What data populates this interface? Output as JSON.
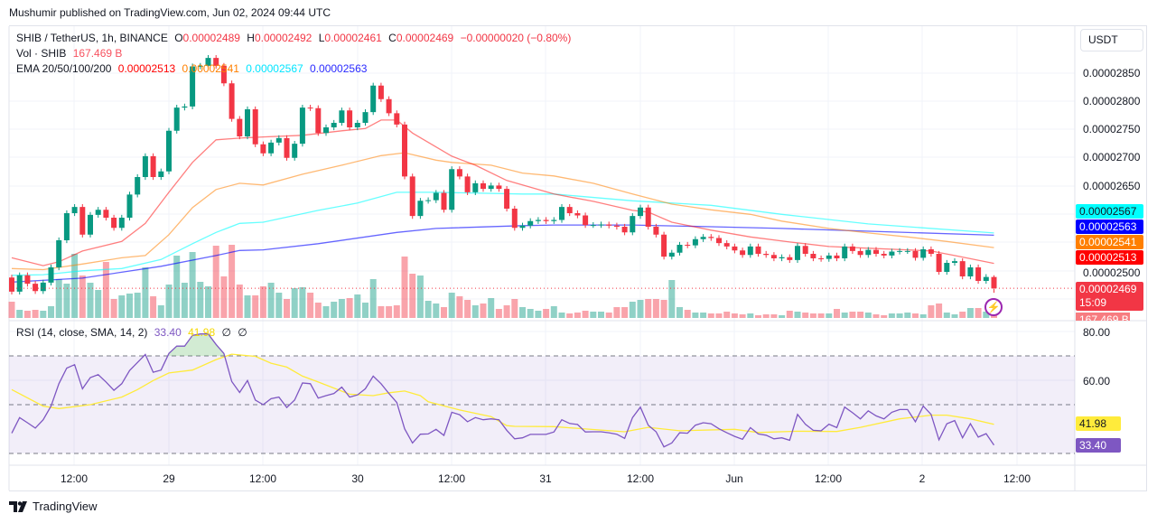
{
  "header": {
    "published": "Mushumir published on TradingView.com, Jun 02, 2024 09:44 UTC"
  },
  "legend": {
    "symbol": "SHIB / TetherUS, 1h, BINANCE",
    "o_label": "O",
    "o": "0.00002489",
    "h_label": "H",
    "h": "0.00002492",
    "l_label": "L",
    "l": "0.00002461",
    "c_label": "C",
    "c": "0.00002469",
    "change": "−0.00000020 (−0.80%)",
    "vol_label": "Vol · SHIB",
    "vol": "167.469 B",
    "ema_label": "EMA 20/50/100/200",
    "ema20": "0.00002513",
    "ema50": "0.00002541",
    "ema100": "0.00002567",
    "ema200": "0.00002563",
    "rsi_label": "RSI (14, close, SMA, 14, 2)",
    "rsi": "33.40",
    "rsi_ma": "41.98",
    "na1": "∅",
    "na2": "∅"
  },
  "currency_button": "USDT",
  "price_axis": {
    "ticks": [
      "0.00002850",
      "0.00002800",
      "0.00002750",
      "0.00002700",
      "0.00002650",
      "0.00002500"
    ],
    "labels": {
      "ema100": "0.00002567",
      "ema200": "0.00002563",
      "ema50": "0.00002541",
      "ema20": "0.00002513",
      "last": "0.00002469",
      "countdown": "15:09",
      "volume": "167.469 B"
    }
  },
  "rsi_axis": {
    "ticks": [
      "80.00",
      "60.00"
    ],
    "labels": {
      "ma": "41.98",
      "rsi": "33.40"
    }
  },
  "time_axis": [
    "12:00",
    "29",
    "12:00",
    "30",
    "12:00",
    "31",
    "12:00",
    "Jun",
    "12:00",
    "2",
    "12:00"
  ],
  "footer": {
    "logo_text": "TradingView"
  },
  "colors": {
    "up": "#089981",
    "down": "#f23645",
    "ema20": "#ff0000",
    "ema50": "#ff7f00",
    "ema100": "#00ffff",
    "ema200": "#0000ff",
    "rsi": "#7e57c2",
    "rsi_ma": "#ffeb3b"
  },
  "chart_data": {
    "type": "candlestick",
    "symbol": "SHIB/USDT",
    "interval": "1h",
    "price_unit": "1e-8 USDT",
    "first_open": 2488,
    "closes": [
      2463,
      2492,
      2477,
      2464,
      2479,
      2506,
      2554,
      2602,
      2613,
      2564,
      2599,
      2608,
      2594,
      2576,
      2594,
      2635,
      2666,
      2703,
      2666,
      2676,
      2748,
      2789,
      2791,
      2862,
      2863,
      2877,
      2863,
      2832,
      2769,
      2738,
      2786,
      2724,
      2708,
      2727,
      2735,
      2700,
      2725,
      2789,
      2788,
      2744,
      2754,
      2762,
      2784,
      2754,
      2762,
      2781,
      2828,
      2804,
      2779,
      2759,
      2667,
      2597,
      2624,
      2625,
      2638,
      2608,
      2680,
      2667,
      2639,
      2655,
      2645,
      2651,
      2645,
      2610,
      2576,
      2580,
      2588,
      2590,
      2588,
      2590,
      2613,
      2602,
      2598,
      2581,
      2581,
      2582,
      2580,
      2578,
      2568,
      2597,
      2612,
      2578,
      2564,
      2525,
      2532,
      2546,
      2545,
      2556,
      2560,
      2558,
      2549,
      2543,
      2536,
      2528,
      2543,
      2530,
      2528,
      2522,
      2524,
      2519,
      2544,
      2530,
      2522,
      2521,
      2527,
      2522,
      2543,
      2535,
      2528,
      2537,
      2530,
      2527,
      2534,
      2535,
      2535,
      2523,
      2538,
      2530,
      2498,
      2514,
      2517,
      2490,
      2506,
      2482,
      2489,
      2469
    ],
    "last_candle": {
      "open": 2489,
      "high": 2492,
      "low": 2461,
      "close": 2469
    },
    "volume_relative": [
      18,
      9,
      8,
      9,
      8,
      13,
      43,
      38,
      71,
      47,
      39,
      31,
      62,
      21,
      25,
      27,
      28,
      56,
      24,
      14,
      37,
      69,
      39,
      73,
      40,
      35,
      80,
      46,
      81,
      37,
      25,
      25,
      35,
      39,
      28,
      21,
      33,
      34,
      28,
      17,
      13,
      18,
      21,
      22,
      26,
      17,
      43,
      13,
      13,
      14,
      68,
      49,
      47,
      19,
      16,
      12,
      28,
      24,
      20,
      14,
      16,
      22,
      10,
      14,
      21,
      12,
      10,
      8,
      10,
      13,
      6,
      5,
      6,
      8,
      7,
      7,
      6,
      12,
      12,
      18,
      20,
      21,
      21,
      20,
      42,
      12,
      9,
      6,
      6,
      5,
      5,
      7,
      5,
      4,
      5,
      3,
      4,
      4,
      3,
      8,
      7,
      6,
      5,
      5,
      5,
      10,
      6,
      7,
      7,
      6,
      4,
      3,
      5,
      5,
      6,
      5,
      4,
      14,
      16,
      6,
      4,
      7,
      11,
      11,
      7,
      3
    ],
    "ema20": [
      [
        1,
        2523
      ],
      [
        5,
        2509
      ],
      [
        7,
        2516
      ],
      [
        10,
        2535
      ],
      [
        15,
        2552
      ],
      [
        18,
        2584
      ],
      [
        21,
        2639
      ],
      [
        24,
        2692
      ],
      [
        27,
        2732
      ],
      [
        30,
        2735
      ],
      [
        33,
        2737
      ],
      [
        38,
        2740
      ],
      [
        43,
        2748
      ],
      [
        46,
        2752
      ],
      [
        48,
        2767
      ],
      [
        50,
        2767
      ],
      [
        52,
        2744
      ],
      [
        57,
        2703
      ],
      [
        60,
        2687
      ],
      [
        64,
        2660
      ],
      [
        66,
        2652
      ],
      [
        70,
        2636
      ],
      [
        75,
        2623
      ],
      [
        80,
        2607
      ],
      [
        82,
        2604
      ],
      [
        85,
        2586
      ],
      [
        90,
        2572
      ],
      [
        95,
        2560
      ],
      [
        100,
        2551
      ],
      [
        105,
        2543
      ],
      [
        110,
        2540
      ],
      [
        115,
        2537
      ],
      [
        118,
        2535
      ],
      [
        121,
        2527
      ],
      [
        126,
        2513
      ]
    ],
    "ema50": [
      [
        1,
        2504
      ],
      [
        5,
        2502
      ],
      [
        10,
        2512
      ],
      [
        15,
        2523
      ],
      [
        18,
        2527
      ],
      [
        21,
        2564
      ],
      [
        24,
        2612
      ],
      [
        27,
        2644
      ],
      [
        30,
        2655
      ],
      [
        33,
        2652
      ],
      [
        38,
        2671
      ],
      [
        43,
        2687
      ],
      [
        48,
        2704
      ],
      [
        51,
        2709
      ],
      [
        55,
        2696
      ],
      [
        57,
        2692
      ],
      [
        62,
        2687
      ],
      [
        66,
        2673
      ],
      [
        70,
        2668
      ],
      [
        75,
        2655
      ],
      [
        80,
        2636
      ],
      [
        85,
        2618
      ],
      [
        90,
        2608
      ],
      [
        95,
        2600
      ],
      [
        99,
        2588
      ],
      [
        105,
        2575
      ],
      [
        110,
        2567
      ],
      [
        115,
        2560
      ],
      [
        120,
        2552
      ],
      [
        126,
        2541
      ]
    ],
    "ema100": [
      [
        1,
        2492
      ],
      [
        5,
        2493
      ],
      [
        10,
        2500
      ],
      [
        15,
        2504
      ],
      [
        20,
        2520
      ],
      [
        24,
        2548
      ],
      [
        27,
        2568
      ],
      [
        30,
        2584
      ],
      [
        33,
        2586
      ],
      [
        40,
        2607
      ],
      [
        45,
        2620
      ],
      [
        50,
        2639
      ],
      [
        55,
        2639
      ],
      [
        66,
        2636
      ],
      [
        70,
        2636
      ],
      [
        80,
        2624
      ],
      [
        90,
        2616
      ],
      [
        99,
        2600
      ],
      [
        110,
        2583
      ],
      [
        126,
        2567
      ]
    ],
    "ema200": [
      [
        1,
        2480
      ],
      [
        10,
        2487
      ],
      [
        20,
        2508
      ],
      [
        27,
        2527
      ],
      [
        30,
        2536
      ],
      [
        33,
        2537
      ],
      [
        40,
        2548
      ],
      [
        50,
        2568
      ],
      [
        55,
        2575
      ],
      [
        66,
        2580
      ],
      [
        70,
        2581
      ],
      [
        80,
        2581
      ],
      [
        90,
        2578
      ],
      [
        99,
        2575
      ],
      [
        126,
        2563
      ]
    ],
    "rsi": [
      38.3,
      44.7,
      42.6,
      40.4,
      43.8,
      49.4,
      58.6,
      65.0,
      66.4,
      56.5,
      61.1,
      62.3,
      59.3,
      55.9,
      58.6,
      64.0,
      67.3,
      70.6,
      63.3,
      64.2,
      71.0,
      74.0,
      74.0,
      78.4,
      79.0,
      79.0,
      74.7,
      71.0,
      59.5,
      55.0,
      59.9,
      51.9,
      50.0,
      52.5,
      53.1,
      48.8,
      51.9,
      58.9,
      58.6,
      52.7,
      53.7,
      54.6,
      57.2,
      53.1,
      54.0,
      56.5,
      61.7,
      58.6,
      54.6,
      50.9,
      40.1,
      34.3,
      37.9,
      38.0,
      39.9,
      37.4,
      46.9,
      45.9,
      43.0,
      44.7,
      43.8,
      44.2,
      43.8,
      39.5,
      36.0,
      36.4,
      37.8,
      37.8,
      37.8,
      38.8,
      43.8,
      42.3,
      41.9,
      38.8,
      38.9,
      38.9,
      38.5,
      37.9,
      36.2,
      44.7,
      49.0,
      41.6,
      38.9,
      32.7,
      34.3,
      38.5,
      38.3,
      41.6,
      42.6,
      42.2,
      40.1,
      38.5,
      37.0,
      35.8,
      40.6,
      38.0,
      37.5,
      36.0,
      36.4,
      35.4,
      46.0,
      42.0,
      39.5,
      39.3,
      42.0,
      40.6,
      49.0,
      46.7,
      44.2,
      47.5,
      45.4,
      44.2,
      46.9,
      48.0,
      48.0,
      43.0,
      49.4,
      46.0,
      35.6,
      42.2,
      43.5,
      36.4,
      42.2,
      36.7,
      38.1,
      33.4
    ],
    "rsi_ma": [
      [
        1,
        56.2
      ],
      [
        5,
        49.4
      ],
      [
        7,
        48.4
      ],
      [
        11,
        50.0
      ],
      [
        15,
        53.1
      ],
      [
        17,
        56.2
      ],
      [
        19,
        59.9
      ],
      [
        21,
        63.0
      ],
      [
        24,
        64.2
      ],
      [
        27,
        68.5
      ],
      [
        29,
        70.7
      ],
      [
        32,
        69.8
      ],
      [
        34,
        67.0
      ],
      [
        36,
        65.4
      ],
      [
        38,
        61.7
      ],
      [
        40,
        59.3
      ],
      [
        44,
        54.3
      ],
      [
        47,
        53.7
      ],
      [
        49,
        54.9
      ],
      [
        51,
        55.6
      ],
      [
        53,
        53.7
      ],
      [
        54,
        51.2
      ],
      [
        58,
        47.8
      ],
      [
        62,
        45.1
      ],
      [
        64,
        41.4
      ],
      [
        65,
        41.1
      ],
      [
        70,
        41.0
      ],
      [
        75,
        39.8
      ],
      [
        79,
        38.9
      ],
      [
        82,
        40.7
      ],
      [
        86,
        39.3
      ],
      [
        93,
        39.9
      ],
      [
        96,
        38.6
      ],
      [
        101,
        39.1
      ],
      [
        106,
        39.0
      ],
      [
        109,
        40.7
      ],
      [
        114,
        44.2
      ],
      [
        118,
        45.7
      ],
      [
        120,
        45.7
      ],
      [
        123,
        44.2
      ],
      [
        126,
        41.98
      ]
    ],
    "rsi_levels": {
      "upper": 70,
      "middle": 50,
      "lower": 30
    },
    "price_range": [
      2440,
      2910
    ],
    "rsi_range": [
      25,
      90
    ]
  }
}
